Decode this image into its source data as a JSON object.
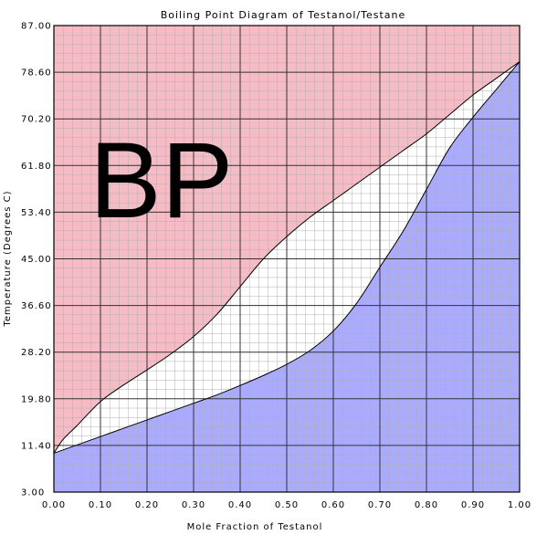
{
  "chart_data": {
    "type": "area",
    "title": "Boiling Point Diagram of Testanol/Testane",
    "xlabel": "Mole Fraction of Testanol",
    "ylabel": "Temperature (Degrees C)",
    "xlim": [
      0,
      1
    ],
    "ylim": [
      3.0,
      87.0
    ],
    "x_ticks": [
      "0.00",
      "0.10",
      "0.20",
      "0.30",
      "0.40",
      "0.50",
      "0.60",
      "0.70",
      "0.80",
      "0.90",
      "1.00"
    ],
    "y_ticks": [
      "3.00",
      "11.40",
      "19.80",
      "28.20",
      "36.60",
      "45.00",
      "53.40",
      "61.80",
      "70.20",
      "78.60",
      "87.00"
    ],
    "annotation": "BP",
    "grid": true,
    "colors": {
      "vapor_region": "#f5bcc6",
      "liquid_region": "#aaaaff",
      "two_phase_region": "#ffffff",
      "grid_major": "#333333",
      "grid_minor": "#b0b0b0"
    },
    "series": [
      {
        "x": [
          0.0,
          0.02,
          0.05,
          0.1,
          0.15,
          0.2,
          0.25,
          0.3,
          0.35,
          0.4,
          0.45,
          0.5,
          0.55,
          0.6,
          0.65,
          0.7,
          0.75,
          0.8,
          0.85,
          0.9,
          0.95,
          1.0
        ],
        "y": [
          10.0,
          12.5,
          15.0,
          19.3,
          22.3,
          25.0,
          27.8,
          31.0,
          35.0,
          40.0,
          45.0,
          49.0,
          52.5,
          55.5,
          58.5,
          61.5,
          64.5,
          67.5,
          71.0,
          74.5,
          77.5,
          80.5
        ]
      },
      {
        "x": [
          0.0,
          0.05,
          0.1,
          0.15,
          0.2,
          0.25,
          0.3,
          0.35,
          0.4,
          0.45,
          0.5,
          0.55,
          0.6,
          0.65,
          0.7,
          0.75,
          0.8,
          0.85,
          0.9,
          0.95,
          1.0
        ],
        "y": [
          10.0,
          11.5,
          13.0,
          14.5,
          16.0,
          17.5,
          19.0,
          20.5,
          22.2,
          24.0,
          26.0,
          28.5,
          32.0,
          37.0,
          43.5,
          50.0,
          57.5,
          65.0,
          70.5,
          75.5,
          80.5
        ]
      }
    ]
  }
}
